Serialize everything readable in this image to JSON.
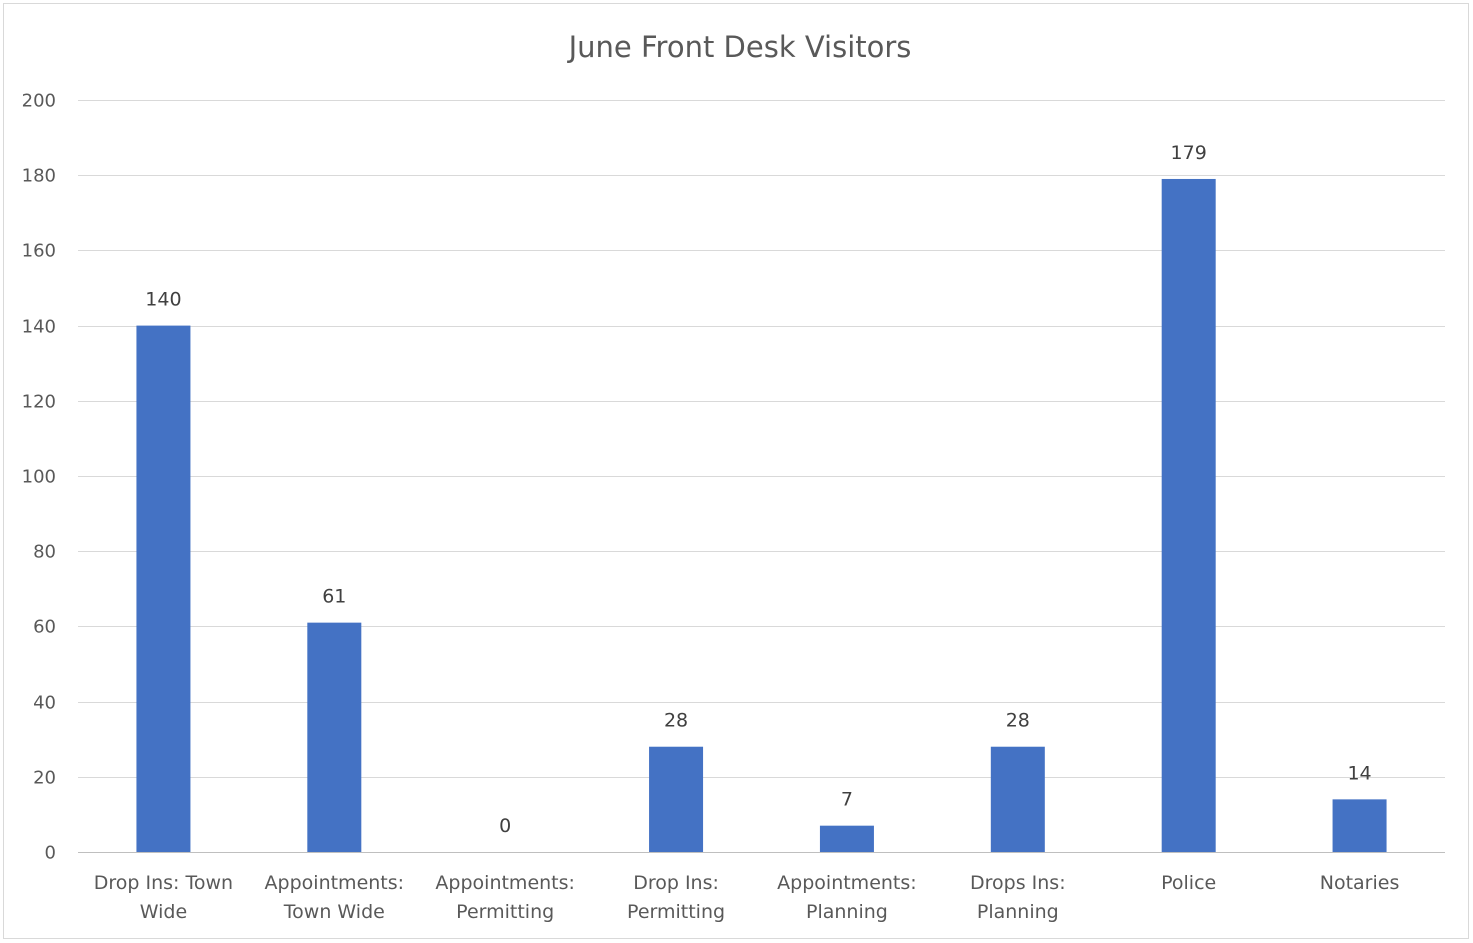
{
  "chart_data": {
    "type": "bar",
    "title": "June Front Desk Visitors",
    "xlabel": "",
    "ylabel": "",
    "categories": [
      [
        "Drop Ins: Town",
        "Wide"
      ],
      [
        "Appointments:",
        "Town Wide"
      ],
      [
        "Appointments:",
        "Permitting"
      ],
      [
        "Drop Ins:",
        "Permitting"
      ],
      [
        "Appointments:",
        "Planning"
      ],
      [
        "Drops Ins:",
        "Planning"
      ],
      [
        "Police"
      ],
      [
        "Notaries"
      ]
    ],
    "values": [
      140,
      61,
      0,
      28,
      7,
      28,
      179,
      14
    ],
    "ylim": [
      0,
      200
    ],
    "yticks": [
      "0",
      "20",
      "40",
      "60",
      "80",
      "100",
      "120",
      "140",
      "160",
      "180",
      "200"
    ],
    "grid": true,
    "legend": "none",
    "data_labels": true,
    "colors": {
      "bar": "#4472c4",
      "grid": "#d9d9d9",
      "text": "#595959"
    }
  }
}
